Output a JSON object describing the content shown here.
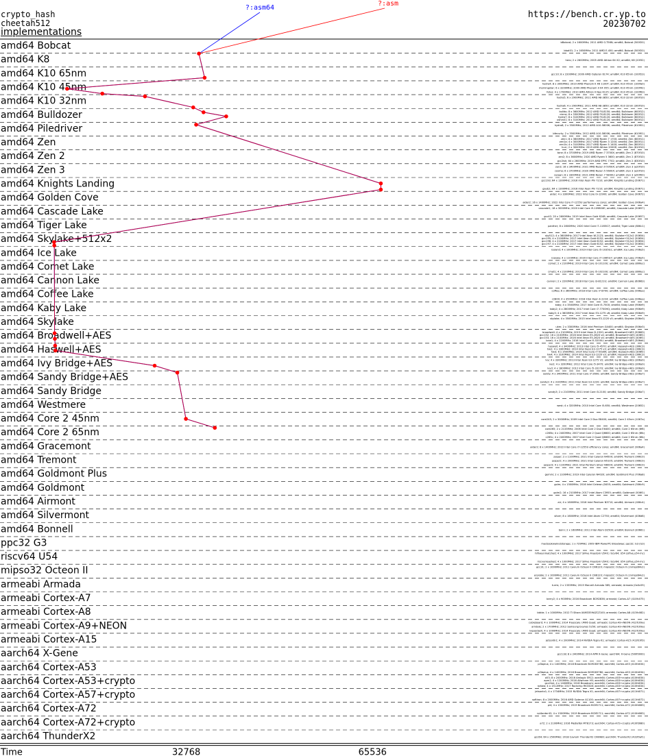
{
  "header": {
    "line1": "crypto_hash",
    "line2": "cheetah512",
    "line3": "implementations",
    "site": "https://bench.cr.yp.to",
    "date": "20230702"
  },
  "chart_data": {
    "type": "line",
    "xlabel": "Time",
    "xticks": [
      32768,
      65536
    ],
    "xlim": [
      0,
      114000
    ],
    "series": [
      {
        "name": "?:asm",
        "color": "#ff0000"
      },
      {
        "name": "?:asm64",
        "color": "#0000ff"
      }
    ],
    "categories": [
      "amd64 Bobcat",
      "amd64 K8",
      "amd64 K10 65nm",
      "amd64 K10 45nm",
      "amd64 K10 32nm",
      "amd64 Bulldozer",
      "amd64 Piledriver",
      "amd64 Zen",
      "amd64 Zen 2",
      "amd64 Zen 3",
      "amd64 Knights Landing",
      "amd64 Golden Cove",
      "amd64 Cascade Lake",
      "amd64 Tiger Lake",
      "amd64 Skylake+512x2",
      "amd64 Ice Lake",
      "amd64 Comet Lake",
      "amd64 Cannon Lake",
      "amd64 Coffee Lake",
      "amd64 Kaby Lake",
      "amd64 Skylake",
      "amd64 Broadwell+AES",
      "amd64 Haswell+AES",
      "amd64 Ivy Bridge+AES",
      "amd64 Sandy Bridge+AES",
      "amd64 Sandy Bridge",
      "amd64 Westmere",
      "amd64 Core 2 45nm",
      "amd64 Core 2 65nm",
      "amd64 Gracemont",
      "amd64 Tremont",
      "amd64 Goldmont Plus",
      "amd64 Goldmont",
      "amd64 Airmont",
      "amd64 Silvermont",
      "amd64 Bonnell",
      "ppc32 G3",
      "riscv64 U54",
      "mipso32 Octeon II",
      "armeabi Armada",
      "armeabi Cortex-A7",
      "armeabi Cortex-A8",
      "armeabi Cortex-A9+NEON",
      "armeabi Cortex-A15",
      "aarch64 X-Gene",
      "aarch64 Cortex-A53",
      "aarch64 Cortex-A53+crypto",
      "aarch64 Cortex-A57+crypto",
      "aarch64 Cortex-A72",
      "aarch64 Cortex-A72+crypto",
      "aarch64 ThunderX2"
    ],
    "points": [
      {
        "cat": 0,
        "y": 1.05,
        "x": 35000
      },
      {
        "cat": 2,
        "y": 0.8,
        "x": 36000
      },
      {
        "cat": 3,
        "y": 0.6,
        "x": 11800
      },
      {
        "cat": 3,
        "y": 0.95,
        "x": 18000
      },
      {
        "cat": 3,
        "y": 1.15,
        "x": 25500
      },
      {
        "cat": 4,
        "y": 0.95,
        "x": 34000
      },
      {
        "cat": 5,
        "y": 0.3,
        "x": 35800
      },
      {
        "cat": 5,
        "y": 0.6,
        "x": 39800
      },
      {
        "cat": 5,
        "y": 1.2,
        "x": 34500
      },
      {
        "cat": 10,
        "y": 0.45,
        "x": 67000
      },
      {
        "cat": 10,
        "y": 0.9,
        "x": 67000
      },
      {
        "cat": 14,
        "y": 0.7,
        "x": 9500
      },
      {
        "cat": 14,
        "y": 0.95,
        "x": 9550
      },
      {
        "cat": 21,
        "y": 0.3,
        "x": 9600
      },
      {
        "cat": 21,
        "y": 0.7,
        "x": 9650
      },
      {
        "cat": 22,
        "y": 0.2,
        "x": 9700
      },
      {
        "cat": 22,
        "y": 0.55,
        "x": 9750
      },
      {
        "cat": 23,
        "y": 0.65,
        "x": 27200
      },
      {
        "cat": 24,
        "y": 0.15,
        "x": 31200
      },
      {
        "cat": 27,
        "y": 0.5,
        "x": 32700
      },
      {
        "cat": 28,
        "y": 0.15,
        "x": 37800
      }
    ],
    "line_labels": [
      {
        "text": "?:asm64",
        "color": "#0000ff"
      },
      {
        "text": "?:asm",
        "color": "#ff0000"
      }
    ],
    "machines": [
      [
        "bBobcat; 2 x 1600MHz; 2011 AMD G-T56N; amd64; Bobcat (500f20)",
        "bbat01; 2 x 1650MHz; 2011 AMD E-450; amd64; Bobcat (500f20)"
      ],
      [
        "hero; 2 x 2600MHz; 2005 AMD Athlon 64 X2; amd64; K8 (20f32)"
      ],
      [
        "gcc10; 8 x 2200MHz; 2009 AMD Opteron 6174; amd64; K10 65nm (100f23)"
      ],
      [
        "hydra4; 8 x 3000MHz; 2010 AMD Phenom II X6 1100T; amd64; K10 45nm (100fa0)",
        "morningstar; 6 x 3200MHz; 2009 AMD Phenom II X4 955; amd64; K10 45nm (100f42)",
        "fetus; 4 x 1700MHz; 2010 AMD Athlon II Neo K125; amd64; K10 45nm (100f63)"
      ],
      [
        "hydra5; 6 x 2900MHz; 2011 AMD A8-3850; amd64; K10 32nm (300f10)",
        "hydra6; 4 x 2900MHz; 2011 AMD A8-3850; amd64; K10 32nm (300f10)"
      ],
      [
        "bulldo; 8 x 3600MHz; 2012 AMD FX-8150; amd64; Bulldozer (600f12)",
        "cierra; 8 x 3300MHz; 2012 AMD FX-8120; amd64; Bulldozer (600f12)",
        "hydra7; 8 x 3100MHz; 2012 AMD FX-8120; amd64; Bulldozer (600f12)",
        "oshin01; 8 x 3100MHz; 2012 AMD FX-8120; amd64; Bulldozer (600f12)"
      ],
      [
        "hydra8; 2 x 3500MHz; 2012 AMD A10-5800K; amd64; Piledriver (610f01)",
        "bfecurty; 2 x 3500MHz; 2012 AMD A10-5800K; amd64; Piledriver (610f01)"
      ],
      [
        "zen1; 8 x 3600MHz; 2017 AMD Ryzen 7 1700; amd64; Zen (800f11)",
        "zen1a; 4 x 3000MHz; 2017 AMD Ryzen 3 1200; amd64; Zen (800f11)",
        "zen1b; 4 x 3100MHz; 2017 AMD Ryzen 5 1400; amd64; Zen (800f11)",
        "hurr; 2 x 3000MHz; 2019 AMD Athlon 200GE; amd64; Zen (810f10)"
      ],
      [
        "tone; 8 x 3700MHz; 2019 AMD Ryzen 7 3700X; amd64; Zen 2 (870f10)",
        "zen2; 8 x 3600MHz; 2020 AMD Ryzen 5 3600; amd64; Zen 2 (870f10)",
        "gcc2ish; 64 x 2600MHz; 2019 AMD EPYC 7702; amd64; Zen 2 (830f10)"
      ],
      [
        "zen3; 16 x 3400MHz; 2021 AMD Ryzen 9 5950X; amd64; Zen 3 (a20f10)",
        "cosmo; 6 x 3700MHz; 2020 AMD Ryzen 5 5600X; amd64; Zen 3 (a20f10)",
        "cezaan; 8 x 3300MHz; 2021 AMD Ryzen 7 5800U; amd64; Zen 3 (a50f00)"
      ],
      [
        "gcc193; 64 x 1300MHz; 2016 Intel Xeon Phi 7210; amd64; Knights Landing (50671)",
        "gautj1; 64 x 1300MHz; 2016 Intel Xeon Phi 7210; amd64; Knights Landing (50671)"
      ],
      [
        "alder; 4 x 3300MHz; 2022 Intel Core i9-12900; amd64; Golden Cove (90672)",
        "alder2; 16 x 1400MHz; 2022 Intel Core i7-1255U performance cores; amd64; Golden Cove (906a4)"
      ],
      [
        "cascade1; 18 x 3000MHz; 2020 Intel Core i9-10980XE; amd64; Cascade Lake (50657)",
        "gcc42; 20 x 2600MHz; 2019 Intel Xeon Gold 6248; amd64; Cascade Lake (50657)"
      ],
      [
        "panther; 8 x 2800MHz; 2020 Intel Core i7-1165G7; amd64; Tiger Lake (806c1)"
      ],
      [
        "sky512; 4 x 3600MHz; 2017 Intel Xeon W-2123; amd64; Skylake+512x2 (50654)",
        "gcc195; 4 x 2100MHz; 2017 Intel Xeon Gold 6152; amd64; Skylake+512x2 (50654)",
        "gcc196; 4 x 2100MHz; 2017 Intel Xeon Gold 6152; amd64; Skylake+512x2 (50654)",
        "gcc197; 4 x 2100MHz; 2017 Intel Xeon Gold 6152; amd64; Skylake+512x2 (50654)"
      ],
      [
        "iceland; 4 x 1000MHz; 2019 Intel Core i5-1035G1; amd64; Ice Lake (706e5)",
        "icelake; 4 x 1100MHz; 2020 Intel Core i7-1065G7; amd64; Ice Lake (706e5)"
      ],
      [
        "comet; 2 x 2100MHz; 2019 Intel Core i3-10110U; amd64; Comet Lake (806ec)",
        "cmet1; 4 x 2100MHz; 2019 Intel Core i5-10210U; amd64; Comet Lake (806ec)"
      ],
      [
        "cannon; 2 x 2200MHz; 2018 Intel Core i3-8121U; amd64; Cannon Lake (60663)"
      ],
      [
        "coffee; 6 x 3600MHz; 2018 Intel Core i7-8700; amd64; Coffee Lake (906ea)",
        "c2800; 4 x 3500MHz; 2018 Intel Xeon E-2224; amd64; Coffee Lake (906ea)"
      ],
      [
        "kaby; 4 x 3500MHz; 2017 Intel Core i5-7500; amd64; Kaby Lake (906e9)",
        "kaby2; 4 x 2800MHz; 2017 Intel Core i7-7700HQ; amd64; Kaby Lake (906e9)",
        "kaby3; 4 x 3600MHz; 2017 Intel Xeon E3-1275 v6; amd64; Kaby Lake (906e9)"
      ],
      [
        "skylake; 4 x 3500MHz; 2015 Intel Xeon E3-1220 v5; amd64; Skylake (506e3)",
        "ukm; 2 x 3300MHz; 2016 Intel Pentium G4400; amd64; Skylake (506e3)"
      ],
      [
        "broadwell; 4 x 2100MHz; 2015 Intel Xeon D-1520; amd64; Broadwell+AES (50663)",
        "gcc152; 16 x 2100MHz; 2016 Intel Xeon E5-2620 v4; amd64; Broadwell+AES (406f1)",
        "gcc153; 16 x 2100MHz; 2016 Intel Xeon E5-2620 v4; amd64; Broadwell+AES (406f1)",
        "bnw1; 4 x 2200MHz; 2016 Intel Core i5-5200U; amd64; Broadwell+AES (306d4)"
      ],
      [
        "haswell; 4 x 3400MHz; 2013 Intel Core i5-4570; amd64; Haswell+AES (306c3)",
        "hw2; 4 x 3300MHz; 2014 Intel Xeon E3-1275 v3; amd64; Haswell+AES (306c3)",
        "hw3; 6 x 3500MHz; 2014 Intel Core i7-5930K; amd64; Haswell+AES (306f2)",
        "hw4; 4 x 3100MHz; 2014 Intel Xeon E3-1220 v3; amd64; Haswell+AES (306c3)"
      ],
      [
        "ivy; 4 x 3300MHz; 2013 Intel Xeon E3-1275 V2; amd64; Ivy Bridge+AES (306a9)",
        "ivy2; 4 x 3200MHz; 2012 Intel Core i5-3470; amd64; Ivy Bridge+AES (306a9)",
        "ivy3; 4 x 1800MHz; 2012 Intel Core i5-3317U; amd64; Ivy Bridge+AES (306a9)"
      ],
      [
        "sandy; 4 x 3400MHz; 2011 Intel Core i7-2600; amd64; Sandy Bridge+AES (206a7)",
        "sandy2; 4 x 3100MHz; 2011 Intel Xeon E3-1220; amd64; Sandy Bridge+AES (206a7)"
      ],
      [
        "sandy3; 2 x 2100MHz; 2011 Intel Core i3-2100; amd64; Sandy Bridge (206a7)"
      ],
      [
        "west; 4 x 3200MHz; 2010 Intel Core i5-650; amd64; Westmere (20652)"
      ],
      [
        "core245; 2 x 3000MHz; 2009 Intel Core 2 Duo E8400; amd64; Core 2 45nm (1067a)"
      ],
      [
        "core265; 2 x 2133MHz; 2006 Intel Core 2 Duo E6400; amd64; Core 2 65nm (6f6)",
        "c265b; 4 x 2400MHz; 2007 Intel Core 2 Quad Q6600; amd64; Core 2 65nm (6fb)",
        "c265c; 4 x 2400MHz; 2007 Intel Core 2 Quad Q6600; amd64; Core 2 65nm (6fb)"
      ],
      [
        "alder2; 8 x 1400MHz; 2022 Intel Core i7-1255U efficiency cores; amd64; Gracemont (906a4)"
      ],
      [
        "jasper; 2 x 1100MHz; 2021 Intel Celeron N4500; amd64; Tremont (906c0)",
        "jasper2; 4 x 2000MHz; 2021 Intel Celeron N5105; amd64; Tremont (906c0)",
        "jasper3; 4 x 1100MHz; 2021 Intel Pentium Silver N6000; amd64; Tremont (906c0)"
      ],
      [
        "gemini; 2 x 1100MHz; 2019 Intel Celeron N4020; amd64; Goldmont Plus (706a8)"
      ],
      [
        "golm; 4 x 1500MHz; 2016 Intel Celeron J3455; amd64; Goldmont (506c9)",
        "golm2; 16 x 2100MHz; 2017 Intel Atom C3955; amd64; Goldmont (506f1)"
      ],
      [
        "air; 4 x 1600MHz; 2016 Intel Pentium N3710; amd64; Airmont (406c4)"
      ],
      [
        "silver; 8 x 1600MHz; 2016 Intel Atom C2750; amd64; Silvermont (406d8)"
      ],
      [
        "bonn; 2 x 1600MHz; 2011 Intel Atom D2500; amd64; Bonnell (30661)"
      ],
      [
        "macbookwalnutstorage; 1 x 729MHz; 2009 IBM PowerPC Broadway; ppc32; G3 (G3)"
      ],
      [
        "hifiveunmatched; 4 x 1000MHz; 2017 SiFive Freedom U540; riscv64; U54 (sifive,u54-mc)",
        "riscvunleashed; 4 x 1000MHz; 2017 SiFive Freedom U540; riscv64; U54 (sifive,u54-mc)"
      ],
      [
        "gcc31; 2 x 1000MHz; 2011 Cavium Octeon II CN6120; mipso32; Octeon II (cnmips64v2)",
        "erpro8e; 2 x 1000MHz; 2011 Cavium Octeon II CN6120; mipso32; Octeon II (cnmips64v2)"
      ],
      [
        "turris; 2 x 1333MHz; 2015 Marvell Armada 385; armeabi; Armada (0x0c09)"
      ],
      [
        "berry2; 4 x 900MHz; 2016 Broadcom BCM2836; armeabi; Cortex-A7 (410fc075)"
      ],
      [
        "bbkie; 1 x 1000MHz; 2012 TI Sitara XAM3359AZCZ100; armeabi; Cortex-A8 (413fc082)"
      ],
      [
        "cubieboard; 4 x 1000MHz; 2014 Freescale i.MX6 Quad; armeabi; Cortex-A9+NEON (412fc09a)",
        "arndale; 2 x 1700MHz; 2012 Samsung Exynos 5250; armeabi; Cortex-A9+NEON (412fc09a)",
        "nvpasdash; 4 x 1000MHz; 2014 Freescale i.MX6 Quad; armeabi; Cortex-A9+NEON (412fc09a)"
      ],
      [
        "jetsontk1; 4 x 2000MHz; 2014 NVIDIA Tegra K1; armeabi; Cortex-A15 (413fc0f3)"
      ],
      [
        "gcc118; 8 x 2400MHz; 2014 APM X-Gene; aarch64; X-Gene (500f0000)"
      ],
      [
        "pi3aplus; 4 x 1400MHz; 2018 Broadcom BCM2837B0; aarch64; Cortex-A53 (410fd034)",
        "pi3bplus; 4 x 1400MHz; 2018 Broadcom BCM2837B0; aarch64; Cortex-A53 (410fd034)"
      ],
      [
        "a53; 8 x 2000MHz; 2016 Amlogic S912; aarch64; Cortex-A53+crypto (410fd034)",
        "apm1; 4 x 1200MHz; 2016 Allwinner H5; aarch64; Cortex-A53+crypto (410fd034)",
        "gcc2ish; 4 x 1400MHz; 2018 Broadcom; aarch64; Cortex-A53+crypto (410fd034)",
        "rpitwo; 4 x 1512MHz; 2017 Rockchip RK3328; aarch64; Cortex-A53+crypto (410fd034)"
      ],
      [
        "jetsontx1; 4 x 1734MHz; 2015 NVIDIA Tegra X1; aarch64; Cortex-A57+crypto (411fd071)",
        "softiron; 8 x 2000MHz; 2016 AMD Opteron A1100; aarch64; Cortex-A57+crypto (411fd072)"
      ],
      [
        "pi4; 4 x 1500MHz; 2019 Broadcom BCM2711; aarch64; Cortex-A72 (410fd083)",
        "rpi4order42; 4 x 1500MHz; 2019 Broadcom BCM2711; aarch64; Cortex-A72 (410fd083)"
      ],
      [
        "a72; 2 x 2100MHz; 2016 MediaTek MT8173; aarch64; Cortex-A72+crypto (410fd080)"
      ],
      [
        "gcc64; 64 x 2500MHz; 2018 Cavium ThunderX2 CN9980; aarch64; ThunderX2 (431f0af1)"
      ]
    ]
  }
}
